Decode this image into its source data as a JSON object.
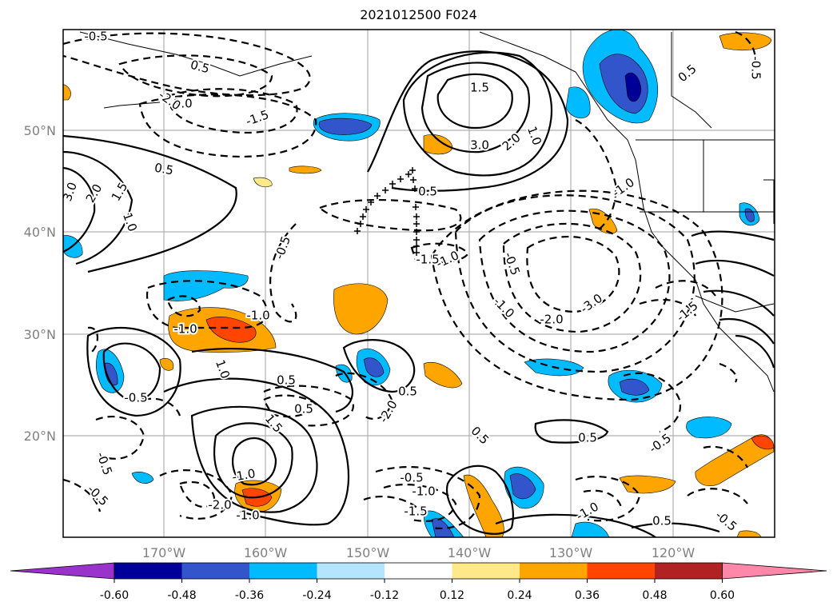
{
  "title": "2021012500 F024",
  "lat_labels": [
    "50°N",
    "40°N",
    "30°N",
    "20°N"
  ],
  "lon_labels": [
    "170°W",
    "160°W",
    "150°W",
    "140°W",
    "130°W",
    "120°W"
  ],
  "colorbar": {
    "labels": [
      "-0.60",
      "-0.48",
      "-0.36",
      "-0.24",
      "-0.12",
      "0.12",
      "0.24",
      "0.36",
      "0.48",
      "0.60"
    ],
    "colors": [
      "#9933cc",
      "#000099",
      "#3355cc",
      "#00bbff",
      "#b3e5fc",
      "#ffffff",
      "#ffe88a",
      "#ffa500",
      "#ff4500",
      "#b22222",
      "#ff88aa"
    ]
  },
  "contour_labels": [
    "-0.5",
    "0.5",
    "-1.5",
    "-1.0",
    "-2.0",
    "1.5",
    "3.0",
    "2.0",
    "1.0",
    "0.5",
    "-0.5",
    "-1.0",
    "0.5",
    "-0.5",
    "-1.0",
    "1.5",
    "1.0",
    "2.0",
    "3.0",
    "0.5",
    "-0.5",
    "-1.0",
    "-1.5",
    "-2.0",
    "-3.0",
    "-1.5",
    "-1.0",
    "-1.0",
    "1.0",
    "0.5",
    "0.5",
    "0.5",
    "-0.5",
    "1.5",
    "-1.0",
    "-2.0",
    "-0.5",
    "-0.5",
    "0.5",
    "0.5",
    "-0.5",
    "-0.5",
    "-1.0",
    "-1.5",
    "-2.0",
    "-1.0",
    "-1.0",
    "0.5",
    "-0.5"
  ]
}
